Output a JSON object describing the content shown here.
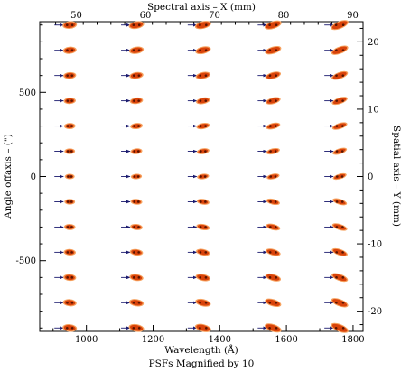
{
  "chart_data": {
    "type": "scatter",
    "title": "",
    "xlabel": "Wavelength (Å)",
    "ylabel": "Angle offaxis – (\")",
    "x2label": "Spectral axis – X (mm)",
    "y2label": "Spatial axis – Y (mm)",
    "caption": "PSFs  Magnified by 10",
    "xlim": [
      860,
      1830
    ],
    "ylim": [
      -920,
      920
    ],
    "x2lim": [
      44.7,
      91.5
    ],
    "y2lim": [
      -23.0,
      23.0
    ],
    "xticks": [
      1000,
      1200,
      1400,
      1600,
      1800
    ],
    "yticks": [
      -500,
      0,
      500
    ],
    "x2ticks": [
      50,
      60,
      70,
      80,
      90
    ],
    "y2ticks": [
      -20,
      -10,
      0,
      10,
      20
    ],
    "psf_wavelengths": [
      950,
      1150,
      1350,
      1560,
      1760
    ],
    "psf_angles": [
      900,
      750,
      600,
      450,
      300,
      150,
      0,
      -150,
      -300,
      -450,
      -600,
      -750,
      -900
    ],
    "grid": false,
    "colors": {
      "psf_core": "#5a1400",
      "psf_mid": "#d9430a",
      "psf_halo": "#f6a15e",
      "arrow": "#1a1a6e"
    }
  }
}
